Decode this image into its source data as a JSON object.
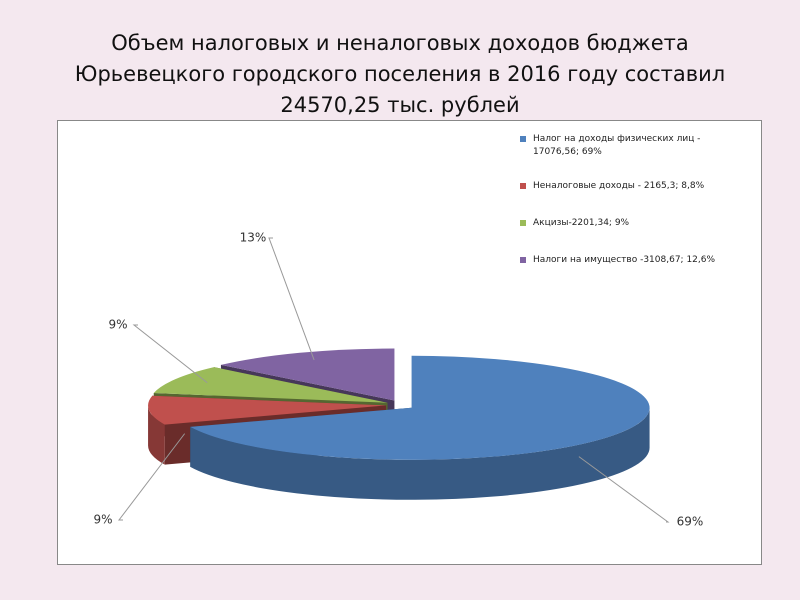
{
  "chart_data": {
    "type": "pie",
    "title": [
      "Объем налоговых и неналоговых доходов бюджета",
      "Юрьевецкого городского поселения в 2016 году  составил",
      "24570,25 тыс. рублей"
    ],
    "categories": [
      "Налог на доходы физических лиц - 17076,56; 69%",
      "Неналоговые доходы - 2165,3; 8,8%",
      "Акцизы-2201,34; 9%",
      "Налоги на имущество -3108,67; 12,6%"
    ],
    "values": [
      69,
      9,
      9,
      13
    ],
    "value_labels": [
      "69%",
      "9%",
      "9%",
      "13%"
    ],
    "colors": [
      "#4f81bd",
      "#c0504d",
      "#9bbb59",
      "#8064a2"
    ],
    "legend": "right"
  }
}
